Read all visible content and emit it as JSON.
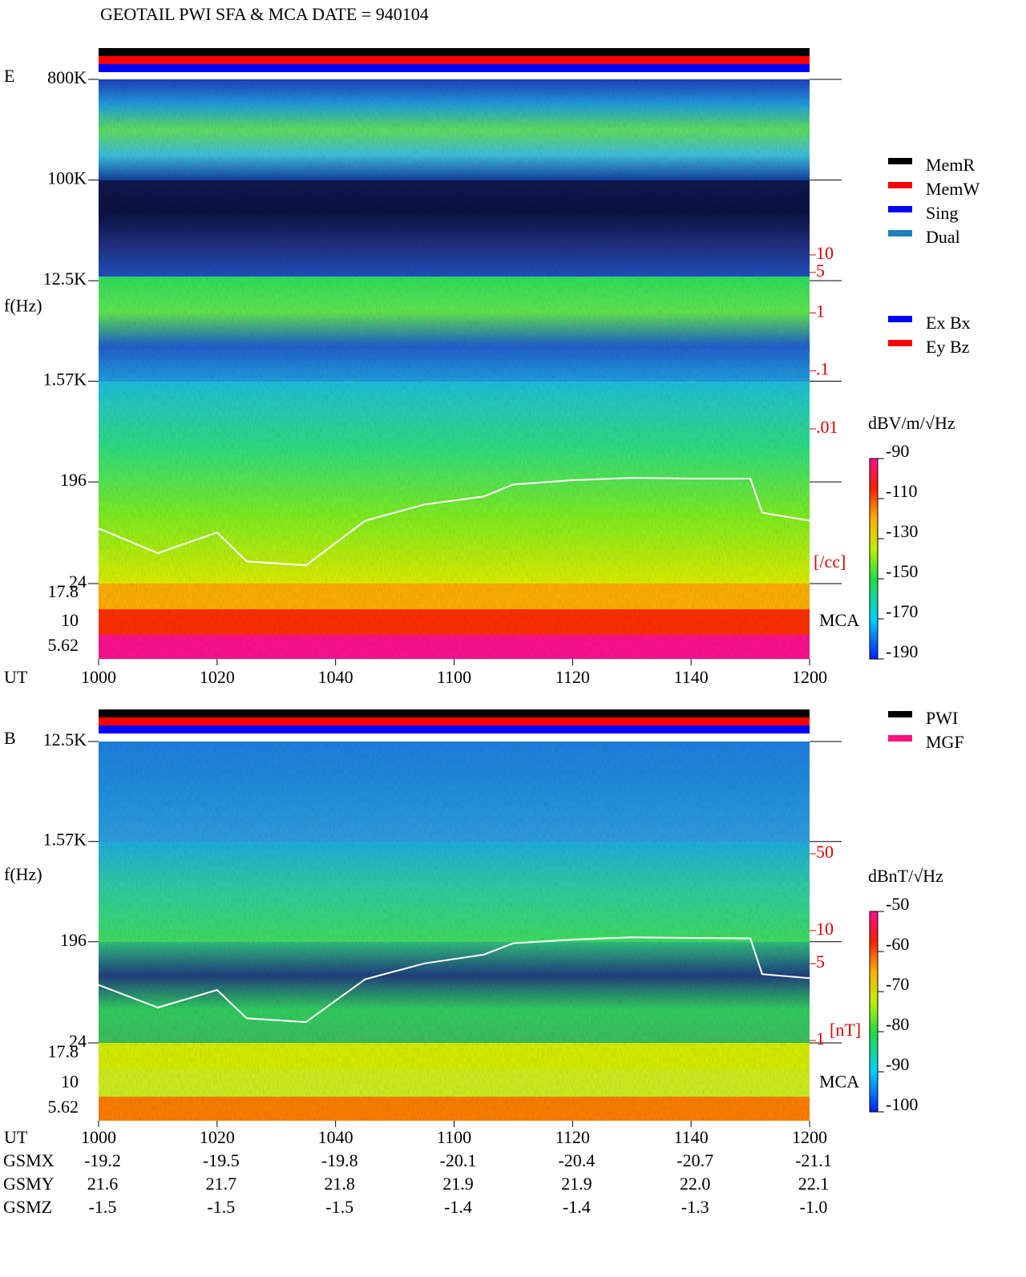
{
  "title": "GEOTAIL  PWI SFA & MCA   DATE = 940104",
  "chart_data": [
    {
      "type": "spectrogram",
      "panel_label": "E",
      "y_label": "f(Hz)",
      "x_label": "UT",
      "log_y": true,
      "xlim": [
        0,
        120
      ],
      "xticks": [
        {
          "value": 0,
          "label": "1000"
        },
        {
          "value": 20,
          "label": "1020"
        },
        {
          "value": 40,
          "label": "1040"
        },
        {
          "value": 60,
          "label": "1100"
        },
        {
          "value": 80,
          "label": "1120"
        },
        {
          "value": 100,
          "label": "1140"
        },
        {
          "value": 120,
          "label": "1200"
        }
      ],
      "ylim": [
        24,
        800000
      ],
      "yticks": [
        {
          "value": 800000,
          "label": "800K"
        },
        {
          "value": 100000,
          "label": "100K"
        },
        {
          "value": 12500,
          "label": "12.5K"
        },
        {
          "value": 1570,
          "label": "1.57K"
        },
        196,
        24
      ],
      "mca_label": "MCA",
      "mca_channels": [
        17.8,
        10,
        5.62
      ],
      "colorbar": {
        "label": "dBV/m/√Hz",
        "lim": [
          -190,
          -90
        ],
        "ticks": [
          -90,
          -110,
          -130,
          -150,
          -170,
          -190
        ]
      },
      "density_scale": {
        "unit": "[/cc]",
        "lim": [
          0.01,
          10
        ],
        "ticks": [
          10,
          5,
          1,
          {
            "value": 0.1,
            "label": ".1"
          },
          {
            "value": 0.01,
            "label": ".01"
          }
        ]
      },
      "legends": [
        [
          {
            "name": "MemR",
            "color": "#000000"
          },
          {
            "name": "MemW",
            "color": "#ff0000"
          },
          {
            "name": "Sing",
            "color": "#0000ff"
          },
          {
            "name": "Dual",
            "color": "#2080c0"
          }
        ],
        [
          {
            "name": "Ex Bx",
            "color": "#0000ff"
          },
          {
            "name": "Ey Bz",
            "color": "#ff0000"
          }
        ]
      ],
      "line": {
        "color": "#ffffff",
        "x": [
          0,
          10,
          20,
          25,
          35,
          45,
          55,
          65,
          70,
          80,
          90,
          100,
          110,
          112,
          120
        ],
        "values": [
          75,
          45,
          69,
          38,
          35,
          88,
          123,
          145,
          186,
          203,
          213,
          210,
          210,
          104,
          88
        ]
      }
    },
    {
      "type": "spectrogram",
      "panel_label": "B",
      "y_label": "f(Hz)",
      "x_label": "UT",
      "log_y": true,
      "xlim": [
        0,
        120
      ],
      "xticks": [
        {
          "value": 0,
          "label": "1000"
        },
        {
          "value": 20,
          "label": "1020"
        },
        {
          "value": 40,
          "label": "1040"
        },
        {
          "value": 60,
          "label": "1100"
        },
        {
          "value": 80,
          "label": "1120"
        },
        {
          "value": 100,
          "label": "1140"
        },
        {
          "value": 120,
          "label": "1200"
        }
      ],
      "ylim": [
        24,
        12500
      ],
      "yticks": [
        {
          "value": 12500,
          "label": "12.5K"
        },
        {
          "value": 1570,
          "label": "1.57K"
        },
        196,
        24
      ],
      "mca_label": "MCA",
      "mca_channels": [
        17.8,
        10,
        5.62
      ],
      "colorbar": {
        "label": "dBnT/√Hz",
        "lim": [
          -100,
          -50
        ],
        "ticks": [
          -50,
          -60,
          -70,
          -80,
          -90,
          -100
        ]
      },
      "density_scale": {
        "unit": "[nT]",
        "lim": [
          1,
          50
        ],
        "ticks": [
          50,
          10,
          5,
          1
        ]
      },
      "legends": [
        [
          {
            "name": "PWI",
            "color": "#000000"
          },
          {
            "name": "MGF",
            "color": "#ff1080"
          }
        ]
      ],
      "line": {
        "color": "#ffffff",
        "x": [
          0,
          10,
          20,
          25,
          35,
          45,
          55,
          65,
          70,
          80,
          90,
          100,
          110,
          112,
          120
        ],
        "values": [
          80,
          50,
          72,
          40,
          37,
          90,
          125,
          150,
          190,
          205,
          215,
          212,
          210,
          100,
          92
        ]
      }
    }
  ],
  "orbit": {
    "rows": [
      {
        "label": "GSMX",
        "values": [
          "-19.2",
          "-19.5",
          "-19.8",
          "-20.1",
          "-20.4",
          "-20.7",
          "-21.1"
        ]
      },
      {
        "label": "GSMY",
        "values": [
          "21.6",
          "21.7",
          "21.8",
          "21.9",
          "21.9",
          "22.0",
          "22.1"
        ]
      },
      {
        "label": "GSMZ",
        "values": [
          "-1.5",
          "-1.5",
          "-1.5",
          "-1.4",
          "-1.4",
          "-1.3",
          "-1.0"
        ]
      }
    ]
  }
}
